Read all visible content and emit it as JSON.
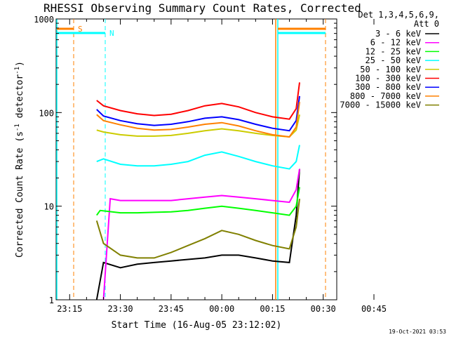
{
  "chart_data": {
    "type": "line",
    "title": "RHESSI Observing Summary Count Rates, Corrected",
    "xlabel": "Start Time (16-Aug-05 23:12:02)",
    "ylabel": "Corrected Count Rate (s",
    "ylabel_sup1": "-1",
    "ylabel_mid": " detector",
    "ylabel_sup2": "-1",
    "ylabel_end": ")",
    "yscale": "log",
    "ylim": [
      1,
      1000
    ],
    "xlim_minutes": [
      -19,
      64
    ],
    "yticks": [
      {
        "v": 1,
        "label": "1"
      },
      {
        "v": 10,
        "label": "10"
      },
      {
        "v": 100,
        "label": "100"
      },
      {
        "v": 1000,
        "label": "1000"
      }
    ],
    "xticks": [
      {
        "m": -15,
        "label": "23:15"
      },
      {
        "m": 0,
        "label": "23:30"
      },
      {
        "m": 15,
        "label": "23:45"
      },
      {
        "m": 30,
        "label": "00:00"
      },
      {
        "m": 45,
        "label": "00:15"
      },
      {
        "m": 60,
        "label": "00:30"
      },
      {
        "m": 75,
        "label": "00:45"
      }
    ],
    "x_axis_origin_label": "23:30",
    "legend_header": [
      "Det 1,3,4,5,6,9,",
      "Att 0"
    ],
    "legend_placement": "right",
    "series": [
      {
        "name": "3 - 6 keV",
        "color": "#000000",
        "x": [
          -7,
          -5,
          0,
          5,
          10,
          15,
          20,
          25,
          30,
          35,
          40,
          45,
          50,
          52,
          53
        ],
        "y": [
          1,
          2.5,
          2.2,
          2.4,
          2.5,
          2.6,
          2.7,
          2.8,
          3,
          3,
          2.8,
          2.6,
          2.5,
          8,
          25
        ]
      },
      {
        "name": "6 - 12 keV",
        "color": "#ff00ff",
        "x": [
          -5,
          -3,
          0,
          5,
          10,
          15,
          20,
          25,
          30,
          35,
          40,
          45,
          50,
          52,
          53
        ],
        "y": [
          1,
          12,
          11.5,
          11.5,
          11.5,
          11.5,
          12,
          12.5,
          13,
          12.5,
          12,
          11.5,
          11,
          15,
          25
        ]
      },
      {
        "name": "12 - 25 keV",
        "color": "#00ff00",
        "x": [
          -7,
          -6,
          0,
          5,
          10,
          15,
          20,
          25,
          30,
          35,
          40,
          45,
          50,
          52,
          53
        ],
        "y": [
          8,
          9,
          8.5,
          8.5,
          8.6,
          8.7,
          9,
          9.5,
          10,
          9.5,
          9,
          8.5,
          8,
          10,
          16
        ]
      },
      {
        "name": "25 - 50 keV",
        "color": "#00ffff",
        "x": [
          -7,
          -5,
          0,
          5,
          10,
          15,
          20,
          25,
          30,
          35,
          40,
          45,
          50,
          52,
          53
        ],
        "y": [
          30,
          32,
          28,
          27,
          27,
          28,
          30,
          35,
          38,
          34,
          30,
          27,
          25,
          30,
          45
        ]
      },
      {
        "name": "50 - 100 keV",
        "color": "#cccc00",
        "x": [
          -7,
          -5,
          0,
          5,
          10,
          15,
          20,
          25,
          30,
          35,
          40,
          45,
          50,
          52,
          53
        ],
        "y": [
          65,
          62,
          58,
          56,
          56,
          57,
          60,
          64,
          67,
          64,
          60,
          57,
          55,
          65,
          95
        ]
      },
      {
        "name": "100 - 300 keV",
        "color": "#ff0000",
        "x": [
          -7,
          -5,
          0,
          5,
          10,
          15,
          20,
          25,
          30,
          35,
          40,
          45,
          50,
          52,
          53
        ],
        "y": [
          135,
          118,
          105,
          97,
          93,
          96,
          105,
          118,
          125,
          115,
          100,
          90,
          85,
          110,
          210
        ]
      },
      {
        "name": "300 - 800 keV",
        "color": "#0000ff",
        "x": [
          -7,
          -5,
          0,
          5,
          10,
          15,
          20,
          25,
          30,
          35,
          40,
          45,
          50,
          52,
          53
        ],
        "y": [
          108,
          92,
          82,
          76,
          73,
          75,
          80,
          87,
          90,
          84,
          75,
          68,
          64,
          82,
          150
        ]
      },
      {
        "name": "800 - 7000 keV",
        "color": "#ff8000",
        "x": [
          -7,
          -5,
          0,
          5,
          10,
          15,
          20,
          25,
          30,
          35,
          40,
          45,
          50,
          52,
          53
        ],
        "y": [
          95,
          82,
          74,
          68,
          65,
          66,
          70,
          75,
          78,
          72,
          64,
          58,
          55,
          70,
          130
        ]
      },
      {
        "name": "7000 - 15000 keV",
        "color": "#808000",
        "x": [
          -7,
          -5,
          0,
          5,
          10,
          15,
          20,
          25,
          30,
          35,
          40,
          45,
          50,
          52,
          53
        ],
        "y": [
          7,
          4,
          3,
          2.8,
          2.8,
          3.2,
          3.8,
          4.5,
          5.5,
          5,
          4.3,
          3.8,
          3.5,
          6,
          12
        ]
      }
    ],
    "annotations": [
      {
        "text": "S",
        "color": "#ff8000"
      },
      {
        "text": "N",
        "color": "#00ffff"
      }
    ],
    "footer": "19-Oct-2021 03:53"
  }
}
